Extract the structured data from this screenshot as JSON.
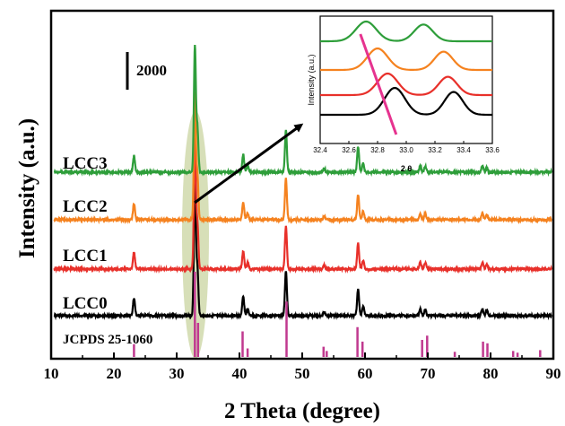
{
  "chart_data": {
    "type": "line",
    "xlabel": "2 Theta (degree)",
    "ylabel": "Intensity (a.u.)",
    "xlim": [
      10,
      90
    ],
    "xticks": [
      10,
      20,
      30,
      40,
      50,
      60,
      70,
      80,
      90
    ],
    "scale_bar": {
      "label": "2000",
      "value": 2000
    },
    "peaks": [
      {
        "x": 23.2,
        "h": 0.13
      },
      {
        "x": 32.9,
        "h": 1.0
      },
      {
        "x": 33.3,
        "h": 0.35
      },
      {
        "x": 40.6,
        "h": 0.14
      },
      {
        "x": 41.3,
        "h": 0.05
      },
      {
        "x": 47.4,
        "h": 0.33
      },
      {
        "x": 53.5,
        "h": 0.03
      },
      {
        "x": 58.9,
        "h": 0.2
      },
      {
        "x": 59.7,
        "h": 0.07
      },
      {
        "x": 68.8,
        "h": 0.05
      },
      {
        "x": 69.6,
        "h": 0.05
      },
      {
        "x": 78.7,
        "h": 0.05
      },
      {
        "x": 79.4,
        "h": 0.04
      }
    ],
    "series": [
      {
        "name": "LCC0",
        "color": "#000000"
      },
      {
        "name": "LCC1",
        "color": "#e8302a"
      },
      {
        "name": "LCC2",
        "color": "#f5821f"
      },
      {
        "name": "LCC3",
        "color": "#2e9e3a"
      }
    ],
    "reference": {
      "name": "JCPDS 25-1060",
      "color": "#c0398f",
      "lines": [
        {
          "x": 23.2,
          "h": 0.15
        },
        {
          "x": 32.9,
          "h": 1.0
        },
        {
          "x": 33.4,
          "h": 0.4
        },
        {
          "x": 40.5,
          "h": 0.3
        },
        {
          "x": 41.3,
          "h": 0.1
        },
        {
          "x": 47.5,
          "h": 0.65
        },
        {
          "x": 53.4,
          "h": 0.12
        },
        {
          "x": 53.9,
          "h": 0.07
        },
        {
          "x": 58.8,
          "h": 0.35
        },
        {
          "x": 59.6,
          "h": 0.18
        },
        {
          "x": 69.1,
          "h": 0.2
        },
        {
          "x": 69.9,
          "h": 0.25
        },
        {
          "x": 74.3,
          "h": 0.06
        },
        {
          "x": 78.8,
          "h": 0.18
        },
        {
          "x": 79.5,
          "h": 0.16
        },
        {
          "x": 83.6,
          "h": 0.07
        },
        {
          "x": 84.3,
          "h": 0.05
        },
        {
          "x": 87.9,
          "h": 0.08
        }
      ]
    },
    "inset": {
      "xlabel": "2 θ",
      "ylabel": "Intensity (a.u.)",
      "xlim": [
        32.4,
        33.6
      ],
      "xticks": [
        "32.4",
        "32.6",
        "32.8",
        "33.0",
        "33.2",
        "33.4",
        "33.6"
      ],
      "series_colors": [
        "#000000",
        "#e8302a",
        "#f5821f",
        "#2e9e3a"
      ],
      "peak_pairs": [
        [
          32.92,
          33.33
        ],
        [
          32.87,
          33.29
        ],
        [
          32.8,
          33.26
        ],
        [
          32.72,
          33.12
        ]
      ],
      "shift_line_color": "#e6338f"
    },
    "highlight": {
      "x_center": 33.0,
      "color": "#c9d4a0"
    }
  }
}
